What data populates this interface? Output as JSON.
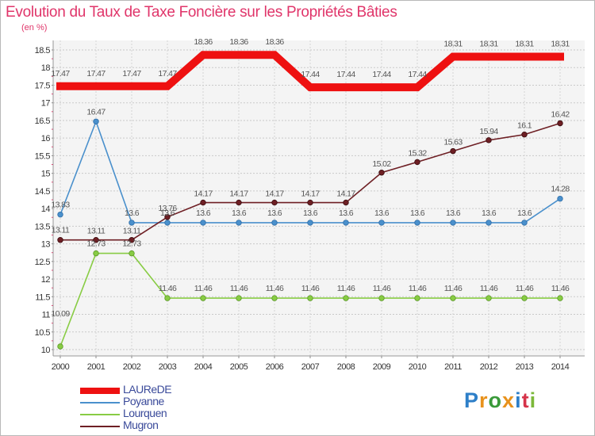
{
  "title": "Evolution du Taux de Taxe Foncière sur les Propriétés Bâties",
  "unit_label": "(en %)",
  "logo_text": "Proxiti",
  "chart_data": {
    "type": "line",
    "title": "Evolution du Taux de Taxe Foncière sur les Propriétés Bâties",
    "ylabel": "(en %)",
    "xlabel": "",
    "ylim": [
      10,
      18.5
    ],
    "y_ticks": [
      10,
      10.5,
      11,
      11.5,
      12,
      12.5,
      13,
      13.5,
      14,
      14.5,
      15,
      15.5,
      16,
      16.5,
      17,
      17.5,
      18,
      18.5
    ],
    "y_tick_labels": [
      "10",
      "10.5",
      "11",
      "11.5",
      "12",
      "12.5",
      "13",
      "13.5",
      "14",
      "14.5",
      "15",
      "15.5",
      "16",
      "16.5",
      "17",
      "17.5",
      "18",
      "18.5"
    ],
    "categories": [
      "2000",
      "2001",
      "2002",
      "2003",
      "2004",
      "2005",
      "2006",
      "2007",
      "2008",
      "2009",
      "2010",
      "2011",
      "2012",
      "2013",
      "2014"
    ],
    "series": [
      {
        "name": "LAUReDE",
        "color": "#ee1111",
        "values": [
          17.47,
          17.47,
          17.47,
          17.47,
          18.36,
          18.36,
          18.36,
          17.44,
          17.44,
          17.44,
          17.44,
          18.31,
          18.31,
          18.31,
          18.31
        ],
        "labels": [
          "17.47",
          "17.47",
          "17.47",
          "17.47",
          "18.36",
          "18.36",
          "18.36",
          "17.44",
          "17.44",
          "17.44",
          "17.44",
          "18.31",
          "18.31",
          "18.31",
          "18.31"
        ]
      },
      {
        "name": "Poyanne",
        "color": "#4a90cc",
        "values": [
          13.83,
          16.47,
          13.6,
          13.6,
          13.6,
          13.6,
          13.6,
          13.6,
          13.6,
          13.6,
          13.6,
          13.6,
          13.6,
          13.6,
          14.28
        ],
        "labels": [
          "13.83",
          "16.47",
          "13.6",
          "13.6",
          "13.6",
          "13.6",
          "13.6",
          "13.6",
          "13.6",
          "13.6",
          "13.6",
          "13.6",
          "13.6",
          "13.6",
          "14.28"
        ]
      },
      {
        "name": "Lourquen",
        "color": "#88cc44",
        "values": [
          10.09,
          12.73,
          12.73,
          11.46,
          11.46,
          11.46,
          11.46,
          11.46,
          11.46,
          11.46,
          11.46,
          11.46,
          11.46,
          11.46,
          11.46
        ],
        "labels": [
          "10.09",
          "12.73",
          "12.73",
          "11.46",
          "11.46",
          "11.46",
          "11.46",
          "11.46",
          "11.46",
          "11.46",
          "11.46",
          "11.46",
          "11.46",
          "11.46",
          "11.46"
        ]
      },
      {
        "name": "Mugron",
        "color": "#6e1f24",
        "values": [
          13.11,
          13.11,
          13.11,
          13.76,
          14.17,
          14.17,
          14.17,
          14.17,
          14.17,
          15.02,
          15.32,
          15.63,
          15.94,
          16.1,
          16.42
        ],
        "labels": [
          "13.11",
          "13.11",
          "13.11",
          "13.76",
          "14.17",
          "14.17",
          "14.17",
          "14.17",
          "14.17",
          "15.02",
          "15.32",
          "15.63",
          "15.94",
          "16.1",
          "16.42"
        ]
      }
    ],
    "legend_position": "bottom-left"
  }
}
